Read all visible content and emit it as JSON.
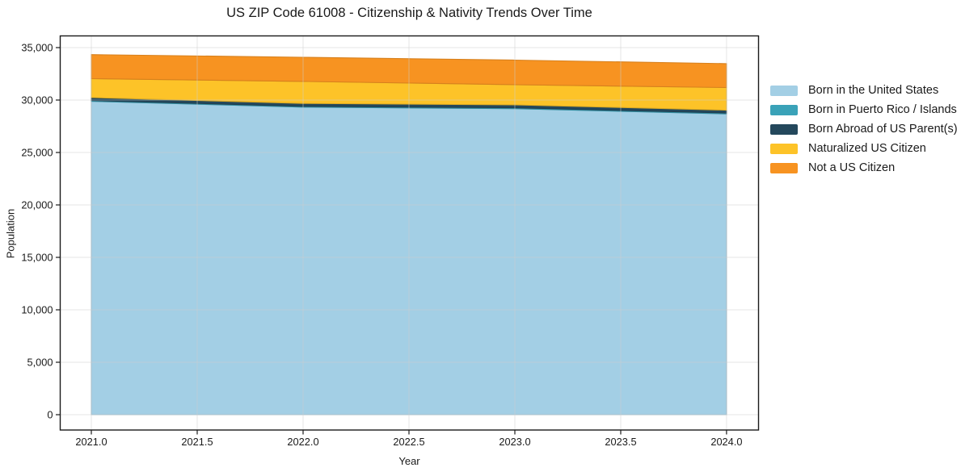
{
  "title": "US ZIP Code 61008 - Citizenship & Nativity Trends Over Time",
  "chart_data": {
    "type": "area",
    "stacked": true,
    "title": "US ZIP Code 61008 - Citizenship & Nativity Trends Over Time",
    "xlabel": "Year",
    "ylabel": "Population",
    "x": [
      2021,
      2022,
      2023,
      2024
    ],
    "series": [
      {
        "name": "Born in the United States",
        "color": "#a3cfe5",
        "values": [
          29880,
          29320,
          29180,
          28680
        ]
      },
      {
        "name": "Born in Puerto Rico / Islands",
        "color": "#3aa2b8",
        "values": [
          80,
          80,
          80,
          80
        ]
      },
      {
        "name": "Born Abroad of US Parent(s)",
        "color": "#24485c",
        "values": [
          280,
          280,
          280,
          280
        ]
      },
      {
        "name": "Naturalized US Citizen",
        "color": "#fdc328",
        "values": [
          1800,
          2100,
          1920,
          2150
        ]
      },
      {
        "name": "Not a US Citizen",
        "color": "#f79321",
        "values": [
          2290,
          2300,
          2350,
          2280
        ]
      }
    ],
    "totals": [
      34330,
      34080,
      33810,
      33470
    ],
    "xlim": [
      2020.853,
      2024.151
    ],
    "ylim": [
      -1461,
      36115
    ],
    "xticks": [
      "2021.0",
      "2021.5",
      "2022.0",
      "2022.5",
      "2023.0",
      "2023.5",
      "2024.0"
    ],
    "xtick_values": [
      2021.0,
      2021.5,
      2022.0,
      2022.5,
      2023.0,
      2023.5,
      2024.0
    ],
    "yticks": [
      "0",
      "5,000",
      "10,000",
      "15,000",
      "20,000",
      "25,000",
      "30,000",
      "35,000"
    ],
    "ytick_values": [
      0,
      5000,
      10000,
      15000,
      20000,
      25000,
      30000,
      35000
    ],
    "grid": true,
    "legend_position": "right"
  }
}
